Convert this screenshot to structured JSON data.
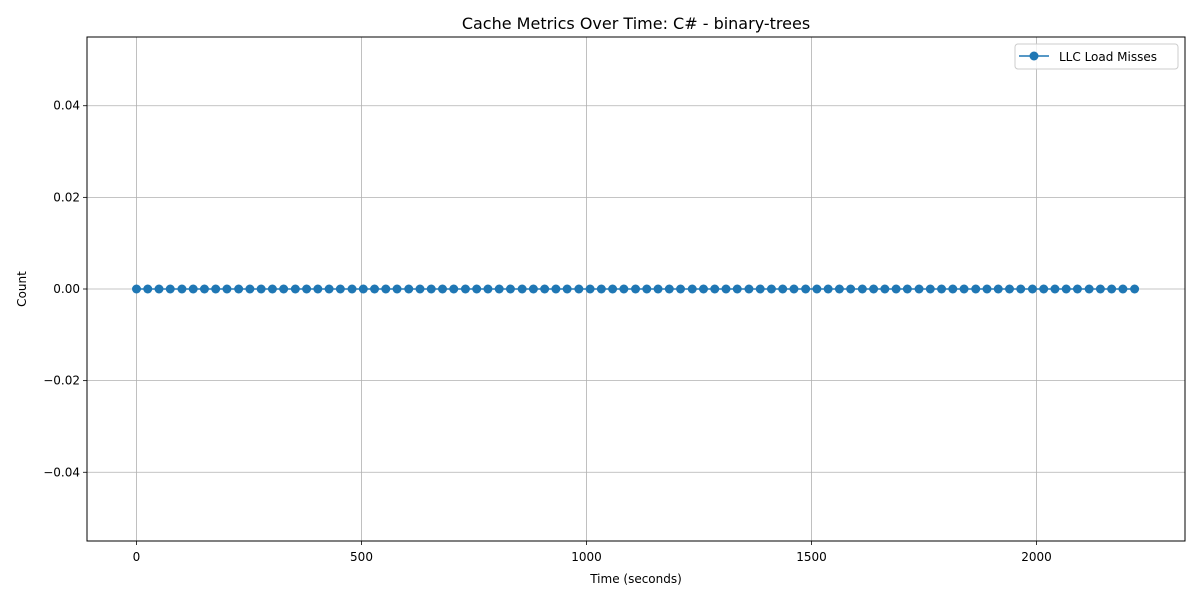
{
  "chart_data": {
    "type": "line",
    "title": "Cache Metrics Over Time: C# - binary-trees",
    "xlabel": "Time (seconds)",
    "ylabel": "Count",
    "xlim": [
      -110,
      2330
    ],
    "ylim": [
      -0.055,
      0.055
    ],
    "x_ticks": [
      0,
      500,
      1000,
      1500,
      2000
    ],
    "x_tick_labels": [
      "0",
      "500",
      "1000",
      "1500",
      "2000"
    ],
    "y_ticks": [
      -0.04,
      -0.02,
      0.0,
      0.02,
      0.04
    ],
    "y_tick_labels": [
      "−0.04",
      "−0.02",
      "0.00",
      "0.02",
      "0.04"
    ],
    "grid": true,
    "legend_position": "top-right",
    "series": [
      {
        "name": "LLC Load Misses",
        "color": "#1f77b4",
        "marker": "circle",
        "x": [
          0,
          25,
          50,
          75,
          101,
          126,
          151,
          176,
          201,
          227,
          252,
          277,
          302,
          327,
          353,
          378,
          403,
          428,
          453,
          479,
          504,
          529,
          554,
          579,
          605,
          630,
          655,
          680,
          705,
          731,
          756,
          781,
          806,
          831,
          857,
          882,
          907,
          932,
          957,
          983,
          1008,
          1033,
          1058,
          1083,
          1109,
          1134,
          1159,
          1184,
          1209,
          1235,
          1260,
          1285,
          1310,
          1335,
          1361,
          1386,
          1411,
          1436,
          1461,
          1487,
          1512,
          1537,
          1562,
          1587,
          1613,
          1638,
          1663,
          1688,
          1713,
          1739,
          1764,
          1789,
          1814,
          1839,
          1865,
          1890,
          1915,
          1940,
          1965,
          1991,
          2016,
          2041,
          2066,
          2091,
          2117,
          2142,
          2167,
          2192,
          2218
        ],
        "y": [
          0,
          0,
          0,
          0,
          0,
          0,
          0,
          0,
          0,
          0,
          0,
          0,
          0,
          0,
          0,
          0,
          0,
          0,
          0,
          0,
          0,
          0,
          0,
          0,
          0,
          0,
          0,
          0,
          0,
          0,
          0,
          0,
          0,
          0,
          0,
          0,
          0,
          0,
          0,
          0,
          0,
          0,
          0,
          0,
          0,
          0,
          0,
          0,
          0,
          0,
          0,
          0,
          0,
          0,
          0,
          0,
          0,
          0,
          0,
          0,
          0,
          0,
          0,
          0,
          0,
          0,
          0,
          0,
          0,
          0,
          0,
          0,
          0,
          0,
          0,
          0,
          0,
          0,
          0,
          0,
          0,
          0,
          0,
          0,
          0,
          0,
          0,
          0,
          0
        ]
      }
    ]
  }
}
